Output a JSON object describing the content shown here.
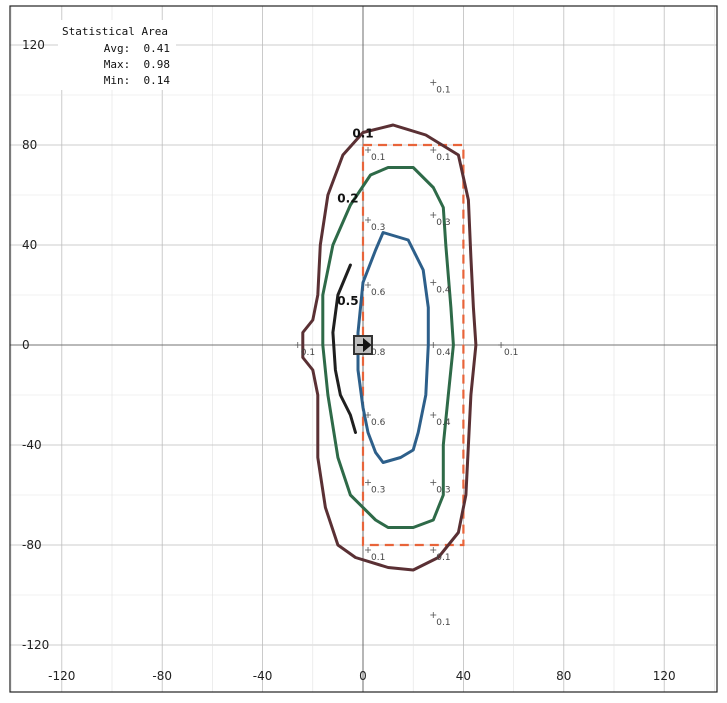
{
  "chart_data": {
    "type": "contour",
    "xlim": [
      -120,
      120
    ],
    "ylim": [
      -120,
      120
    ],
    "x_ticks": [
      -120,
      -80,
      -40,
      0,
      40,
      80,
      120
    ],
    "y_ticks": [
      120,
      80,
      40,
      0,
      -40,
      -80,
      -120
    ],
    "grid": true,
    "stats": {
      "title": "Statistical Area",
      "lines": [
        "Avg:  0.41",
        "Max:  0.98",
        "Min:  0.14"
      ]
    },
    "statistical_area": {
      "x": [
        0,
        40
      ],
      "y": [
        -80,
        80
      ],
      "color": "#e8643a"
    },
    "luminaire": {
      "x": 0,
      "y": 0
    },
    "contours": [
      {
        "label": "0.1",
        "color": "#5a3034",
        "points": [
          [
            0,
            85
          ],
          [
            12,
            88
          ],
          [
            25,
            84
          ],
          [
            38,
            76
          ],
          [
            42,
            58
          ],
          [
            43,
            35
          ],
          [
            44,
            15
          ],
          [
            45,
            0
          ],
          [
            43,
            -20
          ],
          [
            42,
            -40
          ],
          [
            41,
            -60
          ],
          [
            38,
            -75
          ],
          [
            30,
            -85
          ],
          [
            20,
            -90
          ],
          [
            10,
            -89
          ],
          [
            -3,
            -85
          ],
          [
            -10,
            -80
          ],
          [
            -15,
            -65
          ],
          [
            -18,
            -45
          ],
          [
            -18,
            -20
          ],
          [
            -20,
            -10
          ],
          [
            -24,
            -5
          ],
          [
            -24,
            5
          ],
          [
            -20,
            10
          ],
          [
            -18,
            20
          ],
          [
            -17,
            40
          ],
          [
            -14,
            60
          ],
          [
            -8,
            76
          ],
          [
            0,
            85
          ]
        ],
        "label_at": [
          0,
          83
        ]
      },
      {
        "label": "0.2",
        "color": "#2e6a48",
        "points": [
          [
            -5,
            56
          ],
          [
            3,
            68
          ],
          [
            10,
            71
          ],
          [
            20,
            71
          ],
          [
            28,
            63
          ],
          [
            32,
            55
          ],
          [
            33,
            40
          ],
          [
            35,
            15
          ],
          [
            36,
            0
          ],
          [
            34,
            -20
          ],
          [
            32,
            -40
          ],
          [
            32,
            -60
          ],
          [
            28,
            -70
          ],
          [
            20,
            -73
          ],
          [
            10,
            -73
          ],
          [
            5,
            -70
          ],
          [
            -5,
            -60
          ],
          [
            -10,
            -45
          ],
          [
            -14,
            -20
          ],
          [
            -16,
            0
          ],
          [
            -16,
            20
          ],
          [
            -12,
            40
          ],
          [
            -5,
            56
          ]
        ],
        "label_at": [
          -6,
          57
        ]
      },
      {
        "label": "0.5",
        "color": "#1f1f1f",
        "points": [
          [
            -5,
            32
          ],
          [
            -10,
            20
          ],
          [
            -12,
            5
          ],
          [
            -11,
            -10
          ],
          [
            -9,
            -20
          ],
          [
            -5,
            -28
          ],
          [
            -3,
            -35
          ]
        ],
        "label_at": [
          -6,
          16
        ]
      },
      {
        "label": "",
        "color": "#2d5f8a",
        "points": [
          [
            0,
            25
          ],
          [
            5,
            38
          ],
          [
            8,
            45
          ],
          [
            18,
            42
          ],
          [
            24,
            30
          ],
          [
            26,
            15
          ],
          [
            26,
            0
          ],
          [
            25,
            -20
          ],
          [
            22,
            -35
          ],
          [
            20,
            -42
          ],
          [
            15,
            -45
          ],
          [
            8,
            -47
          ],
          [
            5,
            -43
          ],
          [
            2,
            -35
          ],
          [
            0,
            -25
          ],
          [
            -2,
            -10
          ],
          [
            -2,
            5
          ],
          [
            0,
            25
          ]
        ],
        "label_at": null
      }
    ],
    "calc_points": [
      {
        "x": 28,
        "y": 105,
        "label": "0.1"
      },
      {
        "x": 2,
        "y": 78,
        "label": "0.1"
      },
      {
        "x": 28,
        "y": 78,
        "label": "0.1"
      },
      {
        "x": 2,
        "y": 50,
        "label": "0.3"
      },
      {
        "x": 28,
        "y": 52,
        "label": "0.3"
      },
      {
        "x": 2,
        "y": 24,
        "label": "0.6"
      },
      {
        "x": 28,
        "y": 25,
        "label": "0.4"
      },
      {
        "x": -26,
        "y": 0,
        "label": "0.1"
      },
      {
        "x": 2,
        "y": 0,
        "label": "0.8"
      },
      {
        "x": 28,
        "y": 0,
        "label": "0.4"
      },
      {
        "x": 55,
        "y": 0,
        "label": "0.1"
      },
      {
        "x": 2,
        "y": -28,
        "label": "0.6"
      },
      {
        "x": 28,
        "y": -28,
        "label": "0.4"
      },
      {
        "x": 2,
        "y": -55,
        "label": "0.3"
      },
      {
        "x": 28,
        "y": -55,
        "label": "0.3"
      },
      {
        "x": 2,
        "y": -82,
        "label": "0.1"
      },
      {
        "x": 28,
        "y": -82,
        "label": "0.1"
      },
      {
        "x": 28,
        "y": -108,
        "label": "0.1"
      }
    ]
  }
}
